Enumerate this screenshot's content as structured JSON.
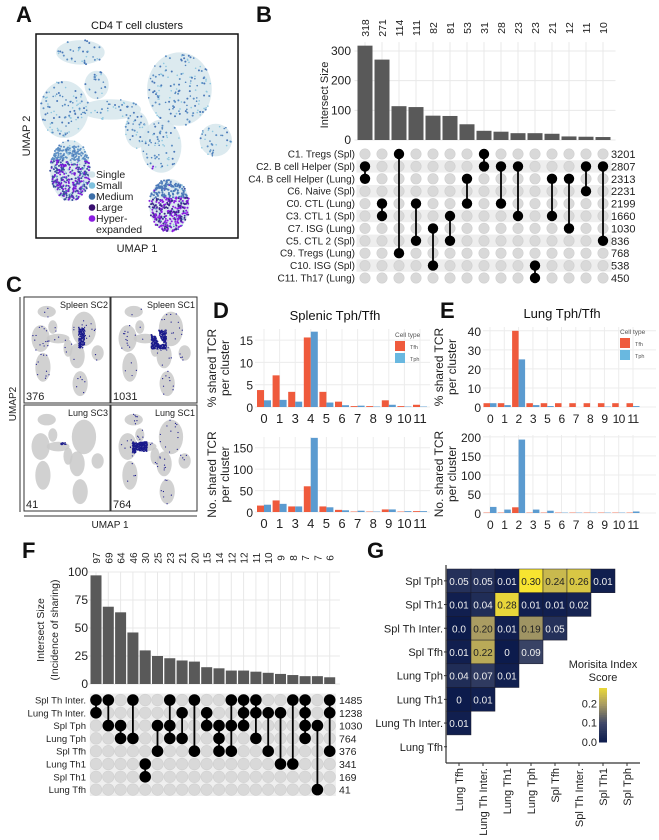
{
  "panels": {
    "A": {
      "letter": "A",
      "title": "CD4 T cell clusters",
      "xlabel": "UMAP 1",
      "ylabel": "UMAP 2",
      "legend": [
        {
          "label": "Single",
          "color": "#d3e4ea"
        },
        {
          "label": "Small",
          "color": "#7fc1dd"
        },
        {
          "label": "Medium",
          "color": "#3d6fa8"
        },
        {
          "label": "Large",
          "color": "#3a1070"
        },
        {
          "label": "Hyper-\nexpanded",
          "color": "#8a1de0"
        }
      ]
    },
    "B": {
      "letter": "B"
    },
    "C": {
      "letter": "C",
      "xlabel": "UMAP 1",
      "ylabel": "UMAP2",
      "tiles": [
        {
          "name": "Spleen SC2",
          "count": "376"
        },
        {
          "name": "Spleen SC1",
          "count": "1031"
        },
        {
          "name": "Lung SC3",
          "count": "41"
        },
        {
          "name": "Lung SC1",
          "count": "764"
        }
      ]
    },
    "D": {
      "letter": "D",
      "title": "Splenic Tph/Tfh"
    },
    "E": {
      "letter": "E",
      "title": "Lung Tph/Tfh"
    },
    "F": {
      "letter": "F"
    },
    "G": {
      "letter": "G"
    }
  },
  "colors": {
    "tfh": "#ef5a3c",
    "tph": "#5b9bd0",
    "bar": "#595959",
    "dot_on": "#000000",
    "dot_off": "#d9d9d9"
  },
  "chart_data": [
    {
      "id": "B",
      "type": "upset",
      "ylabel": "Intersect Size",
      "yticks": [
        0,
        100,
        200,
        300
      ],
      "ylim": [
        0,
        330
      ],
      "sets": [
        "C1. Tregs (Spl)",
        "C2. B cell Helper (Spl)",
        "C4. B cell Helper (Lung)",
        "C6. Naive (Spl)",
        "C0. CTL (Lung)",
        "C3. CTL 1 (Spl)",
        "C7. ISG (Lung)",
        "C5. CTL 2 (Spl)",
        "C9. Tregs (Lung)",
        "C10. ISG (Spl)",
        "C11. Th17 (Lung)"
      ],
      "set_sizes": [
        3201,
        2807,
        2313,
        2231,
        2199,
        1660,
        1030,
        836,
        768,
        538,
        450
      ],
      "intersections": [
        {
          "size": 318,
          "sets": [
            1,
            2
          ]
        },
        {
          "size": 271,
          "sets": [
            4,
            5
          ]
        },
        {
          "size": 114,
          "sets": [
            0,
            8
          ]
        },
        {
          "size": 111,
          "sets": [
            4,
            7
          ]
        },
        {
          "size": 82,
          "sets": [
            6,
            9
          ]
        },
        {
          "size": 81,
          "sets": [
            5,
            7
          ]
        },
        {
          "size": 53,
          "sets": [
            2,
            4
          ]
        },
        {
          "size": 31,
          "sets": [
            0,
            1
          ]
        },
        {
          "size": 28,
          "sets": [
            1,
            4
          ]
        },
        {
          "size": 23,
          "sets": [
            1,
            5
          ]
        },
        {
          "size": 23,
          "sets": [
            9,
            10
          ]
        },
        {
          "size": 21,
          "sets": [
            2,
            5
          ]
        },
        {
          "size": 12,
          "sets": [
            2,
            6
          ]
        },
        {
          "size": 11,
          "sets": [
            1,
            3
          ]
        },
        {
          "size": 10,
          "sets": [
            1,
            7
          ]
        }
      ]
    },
    {
      "id": "D",
      "type": "bar",
      "title": "Splenic Tph/Tfh",
      "legend_title": "Cell type",
      "legend": [
        "Tfh",
        "Tph"
      ],
      "categories": [
        "0",
        "1",
        "3",
        "4",
        "5",
        "6",
        "7",
        "8",
        "9",
        "10",
        "11"
      ],
      "plots": [
        {
          "ylabel": [
            "% shared TCR",
            "per cluster"
          ],
          "yticks": [
            0,
            5,
            10,
            15
          ],
          "ylim": [
            0,
            17.5
          ],
          "series": [
            {
              "name": "Tfh",
              "values": [
                3.8,
                7.1,
                3.4,
                15.6,
                3.4,
                1.2,
                0.2,
                0.2,
                1.5,
                0.2,
                0.5
              ]
            },
            {
              "name": "Tph",
              "values": [
                1.5,
                1.6,
                1.2,
                16.9,
                1.0,
                0.4,
                0.3,
                0.1,
                0.5,
                0.1,
                0.1
              ]
            }
          ]
        },
        {
          "ylabel": [
            "No. shared TCR",
            "per cluster"
          ],
          "yticks": [
            0,
            50,
            100,
            150
          ],
          "ylim": [
            0,
            175
          ],
          "series": [
            {
              "name": "Tfh",
              "values": [
                15,
                27,
                13,
                60,
                13,
                5,
                1,
                1,
                6,
                1,
                2
              ]
            },
            {
              "name": "Tph",
              "values": [
                17,
                19,
                13,
                173,
                11,
                4,
                3,
                1,
                6,
                2,
                2
              ]
            }
          ]
        }
      ]
    },
    {
      "id": "E",
      "type": "bar",
      "title": "Lung Tph/Tfh",
      "legend_title": "Cell type",
      "legend": [
        "Tfh",
        "Tph"
      ],
      "categories": [
        "0",
        "1",
        "2",
        "3",
        "5",
        "6",
        "7",
        "8",
        "9",
        "10",
        "11"
      ],
      "plots": [
        {
          "ylabel": [
            "% shared TCR",
            "per cluster"
          ],
          "yticks": [
            0,
            10,
            20,
            30,
            40
          ],
          "ylim": [
            0,
            42
          ],
          "series": [
            {
              "name": "Tfh",
              "values": [
                2,
                2,
                40,
                2,
                2,
                2,
                2,
                2,
                2,
                2,
                2
              ]
            },
            {
              "name": "Tph",
              "values": [
                2,
                1,
                25,
                1,
                0.5,
                0,
                0,
                0,
                0.2,
                0,
                0.5
              ]
            }
          ]
        },
        {
          "ylabel": [
            "No. shared TCR",
            "per cluster"
          ],
          "yticks": [
            0,
            50,
            100,
            150,
            200
          ],
          "ylim": [
            0,
            205
          ],
          "series": [
            {
              "name": "Tfh",
              "values": [
                1,
                1,
                15,
                1,
                1,
                1,
                1,
                1,
                1,
                1,
                1
              ]
            },
            {
              "name": "Tph",
              "values": [
                16,
                9,
                193,
                9,
                6,
                1,
                1,
                1,
                1,
                1,
                4
              ]
            }
          ]
        }
      ]
    },
    {
      "id": "F",
      "type": "upset",
      "ylabel": "Intersect Size",
      "ylabel2": "(Incidence of  sharing)",
      "yticks": [
        0,
        25,
        50,
        75,
        100
      ],
      "ylim": [
        0,
        100
      ],
      "sets": [
        "Spl Th Inter.",
        "Lung Th Inter.",
        "Spl Tph",
        "Lung Tph",
        "Spl Tfh",
        "Lung Th1",
        "Spl Th1",
        "Lung Tfh"
      ],
      "set_sizes": [
        1485,
        1238,
        1030,
        764,
        376,
        341,
        169,
        41
      ],
      "intersections": [
        {
          "size": 97,
          "sets": [
            0,
            1
          ]
        },
        {
          "size": 69,
          "sets": [
            0,
            2
          ]
        },
        {
          "size": 64,
          "sets": [
            2,
            3
          ]
        },
        {
          "size": 46,
          "sets": [
            0,
            3
          ]
        },
        {
          "size": 30,
          "sets": [
            5,
            6
          ]
        },
        {
          "size": 25,
          "sets": [
            2,
            4
          ]
        },
        {
          "size": 23,
          "sets": [
            0,
            2,
            3
          ]
        },
        {
          "size": 21,
          "sets": [
            1,
            3
          ]
        },
        {
          "size": 20,
          "sets": [
            0,
            4
          ]
        },
        {
          "size": 15,
          "sets": [
            1,
            2
          ]
        },
        {
          "size": 14,
          "sets": [
            2,
            3,
            4
          ]
        },
        {
          "size": 12,
          "sets": [
            0,
            2,
            4
          ]
        },
        {
          "size": 12,
          "sets": [
            0,
            1,
            2
          ]
        },
        {
          "size": 11,
          "sets": [
            0,
            1,
            3
          ]
        },
        {
          "size": 10,
          "sets": [
            1,
            4
          ]
        },
        {
          "size": 9,
          "sets": [
            1,
            5
          ]
        },
        {
          "size": 8,
          "sets": [
            0,
            5
          ]
        },
        {
          "size": 7,
          "sets": [
            0,
            1,
            2,
            3
          ]
        },
        {
          "size": 7,
          "sets": [
            2,
            7
          ]
        },
        {
          "size": 6,
          "sets": [
            0,
            1,
            4
          ]
        }
      ]
    },
    {
      "id": "G",
      "type": "heatmap",
      "legend_title": "Morisita Index\nScore",
      "legend_ticks": [
        0.0,
        0.1,
        0.2
      ],
      "legend_tick_labels": [
        "0.0",
        "0.1",
        "0.2"
      ],
      "range": [
        0,
        0.3
      ],
      "rows": [
        "Spl Tph",
        "Spl Th1",
        "Spl Th Inter.",
        "Spl Tfh",
        "Lung Tph",
        "Lung Th1",
        "Lung Th Inter.",
        "Lung Tfh"
      ],
      "cols": [
        "Lung Tfh",
        "Lung Th Inter.",
        "Lung Th1",
        "Lung Tph",
        "Spl Tfh",
        "Spl Th Inter.",
        "Spl Th1",
        "Spl Tph"
      ],
      "values": [
        [
          "0.05",
          "0.05",
          "0.01",
          "0.30",
          "0.24",
          "0.26",
          "0.01"
        ],
        [
          "0.01",
          "0.04",
          "0.28",
          "0.01",
          "0.01",
          "0.02"
        ],
        [
          "0.0",
          "0.20",
          "0.01",
          "0.19",
          "0.05"
        ],
        [
          "0.01",
          "0.22",
          "0",
          "0.09"
        ],
        [
          "0.04",
          "0.07",
          "0.01"
        ],
        [
          "0",
          "0.01"
        ],
        [
          "0.01"
        ],
        []
      ]
    }
  ]
}
